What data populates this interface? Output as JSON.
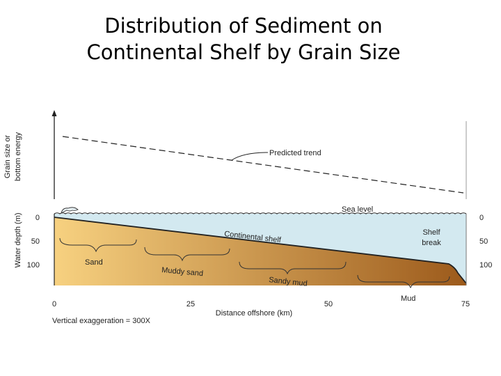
{
  "title": {
    "line1": "Distribution of Sediment on",
    "line2": "Continental Shelf by Grain Size"
  },
  "diagram": {
    "y_axis_top_label_line1": "Grain size or",
    "y_axis_top_label_line2": "bottom energy",
    "predicted_trend_label": "Predicted trend",
    "sea_level_label": "Sea level",
    "y_axis_bottom_label": "Water depth (m)",
    "depth_ticks_left": [
      "0",
      "50",
      "100"
    ],
    "depth_ticks_right": [
      "0",
      "50",
      "100"
    ],
    "continental_shelf_label": "Continental shelf",
    "shelf_break_line1": "Shelf",
    "shelf_break_line2": "break",
    "sediment_zones": [
      "Sand",
      "Muddy sand",
      "Sandy mud",
      "Mud"
    ],
    "distance_ticks": [
      "0",
      "25",
      "50",
      "75"
    ],
    "x_axis_label": "Distance offshore (km)",
    "vertical_exaggeration": "Vertical exaggeration = 300X",
    "colors": {
      "water": "#d3e9f0",
      "shelf_light": "#f7d180",
      "shelf_dark": "#9c5a1b",
      "line": "#222222"
    }
  }
}
